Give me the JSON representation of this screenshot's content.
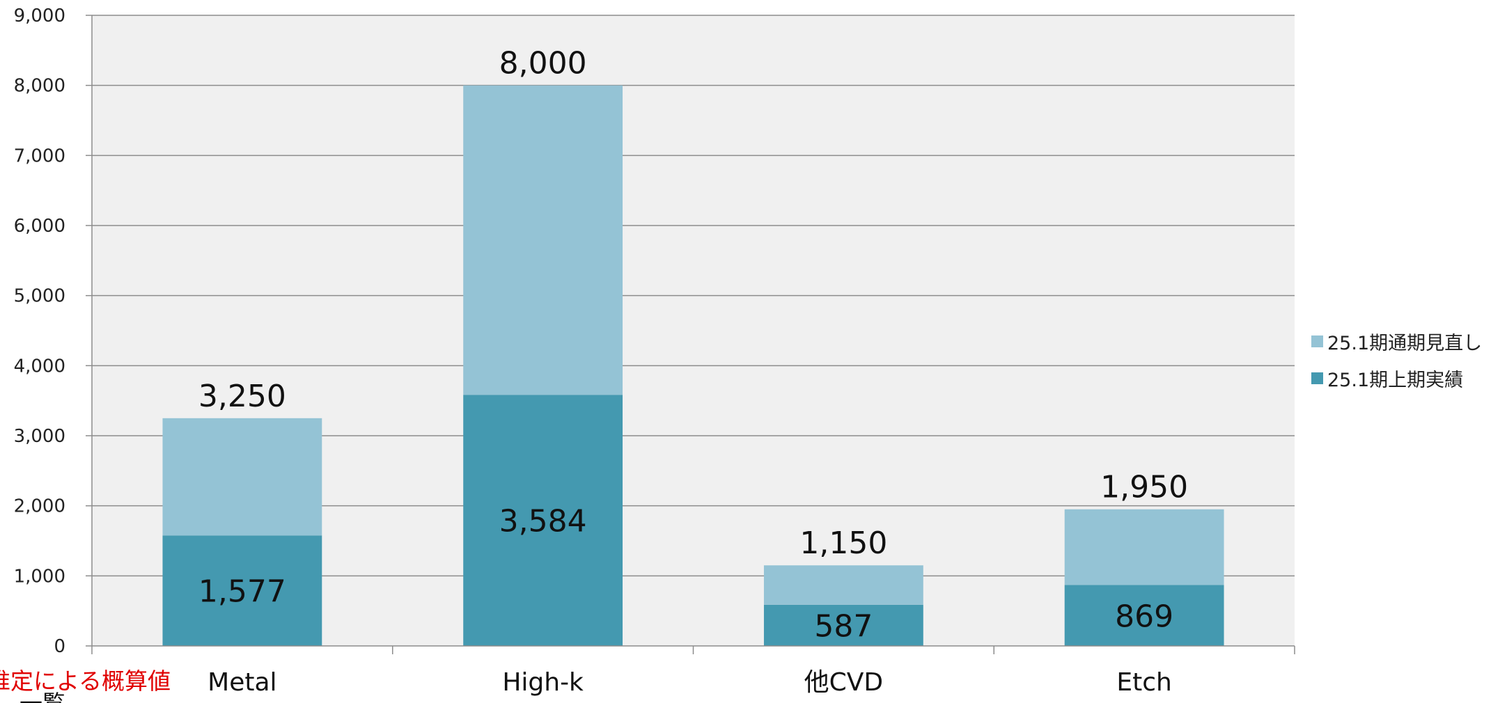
{
  "chart_data": {
    "type": "bar",
    "stacked": true,
    "categories": [
      "Metal",
      "High-k",
      "他CVD",
      "Etch"
    ],
    "series": [
      {
        "name": "25.1期上期実績",
        "values": [
          1577,
          3584,
          587,
          869
        ],
        "color": "#4499B0"
      },
      {
        "name": "25.1期通期見直し",
        "values": [
          1673,
          4416,
          563,
          1081
        ],
        "color": "#94C3D5"
      }
    ],
    "segment_labels": [
      "1,577",
      "3,584",
      "587",
      "869"
    ],
    "total_labels": [
      "3,250",
      "8,000",
      "1,150",
      "1,950"
    ],
    "yticks": [
      "0",
      "1,000",
      "2,000",
      "3,000",
      "4,000",
      "5,000",
      "6,000",
      "7,000",
      "8,000",
      "9,000"
    ],
    "ylim": [
      0,
      9000
    ],
    "grid": true,
    "legend_position": "right",
    "plot_background": "#F0F0F0",
    "title": "",
    "xlabel": "",
    "ylabel": ""
  },
  "notes": {
    "red_note": "推定による概算値",
    "cut_note": "一覧"
  }
}
